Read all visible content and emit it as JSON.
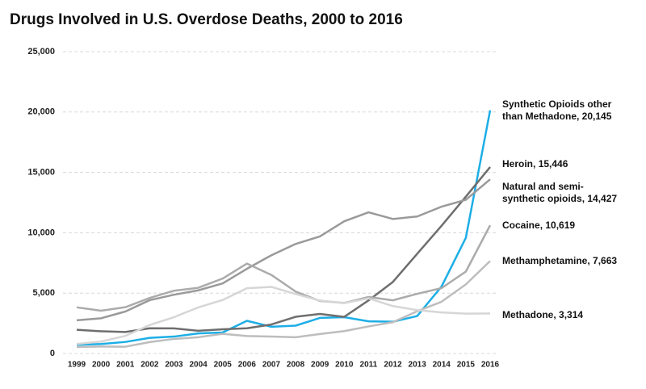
{
  "chart_data": {
    "type": "line",
    "title": "Drugs Involved in U.S. Overdose Deaths, 2000 to 2016",
    "categories": [
      "1999",
      "2000",
      "2001",
      "2002",
      "2003",
      "2004",
      "2005",
      "2006",
      "2007",
      "2008",
      "2009",
      "2010",
      "2011",
      "2012",
      "2013",
      "2014",
      "2015",
      "2016"
    ],
    "ylim": [
      0,
      25000
    ],
    "yticks": [
      0,
      {
        "value": 5000,
        "label": "5,000"
      },
      {
        "value": 10000,
        "label": "10,000"
      },
      {
        "value": 15000,
        "label": "15,000"
      },
      {
        "value": 20000,
        "label": "20,000"
      },
      {
        "value": 25000,
        "label": "25,000"
      }
    ],
    "grid": true,
    "series": [
      {
        "name": "Synthetic Opioids other than Methadone",
        "color": "#1daee6",
        "values": [
          730,
          782,
          957,
          1295,
          1400,
          1664,
          1742,
          2707,
          2213,
          2306,
          2946,
          3007,
          2666,
          2628,
          3105,
          5544,
          9580,
          20145
        ],
        "value_labels": [
          null,
          null,
          null,
          null,
          null,
          null,
          null,
          null,
          null,
          null,
          null,
          null,
          null,
          null,
          null,
          null,
          null,
          "20,145"
        ]
      },
      {
        "name": "Heroin",
        "color": "#6e6e6e",
        "values": [
          1960,
          1842,
          1779,
          2089,
          2080,
          1878,
          2009,
          2088,
          2399,
          3041,
          3278,
          3036,
          4397,
          5925,
          8257,
          10574,
          12989,
          15446
        ],
        "value_labels": [
          null,
          null,
          null,
          null,
          null,
          null,
          null,
          null,
          null,
          null,
          null,
          null,
          null,
          null,
          null,
          null,
          null,
          "15,446"
        ]
      },
      {
        "name": "Natural and semi-synthetic opioids",
        "color": "#9a9a9a",
        "values": [
          2749,
          2917,
          3476,
          4416,
          4867,
          5231,
          5805,
          7017,
          8130,
          9073,
          9695,
          10948,
          11693,
          11140,
          11346,
          12159,
          12727,
          14427
        ],
        "value_labels": [
          null,
          null,
          null,
          null,
          null,
          null,
          null,
          null,
          null,
          null,
          null,
          null,
          null,
          null,
          null,
          null,
          null,
          "14,427"
        ]
      },
      {
        "name": "Cocaine",
        "color": "#ababab",
        "values": [
          3822,
          3544,
          3833,
          4599,
          5199,
          5443,
          6208,
          7448,
          6512,
          5129,
          4350,
          4183,
          4681,
          4404,
          4944,
          5415,
          6784,
          10619
        ],
        "value_labels": [
          null,
          null,
          null,
          null,
          null,
          null,
          null,
          null,
          null,
          null,
          null,
          null,
          null,
          null,
          null,
          null,
          null,
          "10,619"
        ]
      },
      {
        "name": "Methamphetamine",
        "color": "#bdbdbd",
        "values": [
          547,
          578,
          563,
          945,
          1207,
          1349,
          1627,
          1442,
          1400,
          1344,
          1611,
          1854,
          2242,
          2589,
          3499,
          4284,
          5723,
          7663
        ],
        "value_labels": [
          null,
          null,
          null,
          null,
          null,
          null,
          null,
          null,
          null,
          null,
          null,
          null,
          null,
          null,
          null,
          null,
          null,
          "7,663"
        ]
      },
      {
        "name": "Methadone",
        "color": "#d6d6d6",
        "values": [
          784,
          986,
          1456,
          2358,
          3007,
          3819,
          4430,
          5406,
          5518,
          4924,
          4384,
          4173,
          4567,
          3925,
          3592,
          3400,
          3301,
          3314
        ],
        "value_labels": [
          null,
          null,
          null,
          null,
          null,
          null,
          null,
          null,
          null,
          null,
          null,
          null,
          null,
          null,
          null,
          null,
          null,
          "3,314"
        ]
      }
    ]
  }
}
